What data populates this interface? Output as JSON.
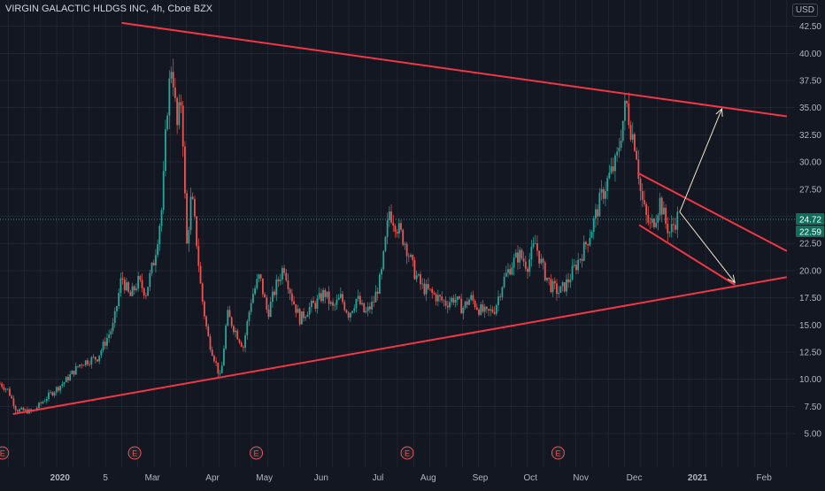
{
  "header": {
    "symbol_title": "VIRGIN GALACTIC HLDGS INC, 4h, Cboe BZX",
    "currency": "USD"
  },
  "colors": {
    "background": "#131722",
    "grid": "#2a2e39",
    "up": "#26a69a",
    "down": "#ef5350",
    "trendline": "#f23645",
    "projection_arrow": "#f0e6c8",
    "axis_text": "#b2b5be",
    "price_line": "#26a69a"
  },
  "chart_data": {
    "type": "candlestick",
    "timeframe": "4h",
    "ylim": [
      4.0,
      45.0
    ],
    "y_ticks": [
      "42.50",
      "40.00",
      "37.50",
      "35.00",
      "32.50",
      "30.00",
      "27.50",
      "25.00",
      "22.50",
      "20.00",
      "17.50",
      "15.00",
      "12.50",
      "10.00",
      "7.50",
      "5.00"
    ],
    "x_ticks": [
      {
        "label": "2020",
        "bold": true
      },
      {
        "label": "5",
        "bold": false
      },
      {
        "label": "Mar",
        "bold": false
      },
      {
        "label": "Apr",
        "bold": false
      },
      {
        "label": "May",
        "bold": false
      },
      {
        "label": "Jun",
        "bold": false
      },
      {
        "label": "Jul",
        "bold": false
      },
      {
        "label": "Aug",
        "bold": false
      },
      {
        "label": "Sep",
        "bold": false
      },
      {
        "label": "Oct",
        "bold": false
      },
      {
        "label": "Nov",
        "bold": false
      },
      {
        "label": "Dec",
        "bold": false
      },
      {
        "label": "2021",
        "bold": true
      },
      {
        "label": "Feb",
        "bold": false
      }
    ],
    "price_path": [
      [
        0.0,
        9.6
      ],
      [
        0.5,
        9.0
      ],
      [
        1.0,
        7.2
      ],
      [
        2.0,
        7.0
      ],
      [
        3.0,
        8.5
      ],
      [
        4.0,
        9.8
      ],
      [
        5.0,
        11.5
      ],
      [
        6.0,
        12.0
      ],
      [
        7.0,
        15.0
      ],
      [
        7.5,
        19.5
      ],
      [
        8.0,
        17.5
      ],
      [
        8.5,
        19.0
      ],
      [
        9.0,
        18.0
      ],
      [
        9.5,
        21.0
      ],
      [
        10.0,
        26.0
      ],
      [
        10.3,
        35.0
      ],
      [
        10.6,
        39.5
      ],
      [
        10.9,
        33.0
      ],
      [
        11.2,
        36.0
      ],
      [
        11.5,
        22.0
      ],
      [
        11.8,
        27.0
      ],
      [
        12.1,
        23.0
      ],
      [
        12.4,
        18.0
      ],
      [
        12.8,
        14.0
      ],
      [
        13.2,
        12.0
      ],
      [
        13.6,
        10.0
      ],
      [
        14.0,
        16.0
      ],
      [
        14.5,
        14.5
      ],
      [
        15.0,
        13.0
      ],
      [
        15.5,
        17.5
      ],
      [
        16.0,
        19.5
      ],
      [
        16.5,
        16.0
      ],
      [
        17.0,
        18.5
      ],
      [
        17.5,
        20.5
      ],
      [
        18.0,
        17.5
      ],
      [
        18.5,
        15.5
      ],
      [
        19.0,
        16.5
      ],
      [
        19.5,
        17.0
      ],
      [
        20.0,
        18.0
      ],
      [
        20.5,
        16.5
      ],
      [
        21.0,
        17.5
      ],
      [
        21.5,
        16.0
      ],
      [
        22.0,
        17.5
      ],
      [
        22.5,
        16.0
      ],
      [
        23.0,
        17.0
      ],
      [
        23.5,
        19.5
      ],
      [
        24.0,
        25.5
      ],
      [
        24.5,
        24.0
      ],
      [
        25.0,
        22.5
      ],
      [
        25.5,
        20.0
      ],
      [
        26.0,
        18.5
      ],
      [
        26.5,
        18.0
      ],
      [
        27.0,
        17.5
      ],
      [
        27.5,
        17.0
      ],
      [
        28.0,
        17.5
      ],
      [
        28.5,
        16.5
      ],
      [
        29.0,
        17.5
      ],
      [
        29.5,
        16.5
      ],
      [
        30.0,
        16.0
      ],
      [
        30.5,
        16.5
      ],
      [
        31.0,
        19.0
      ],
      [
        31.5,
        20.5
      ],
      [
        32.0,
        21.5
      ],
      [
        32.5,
        20.5
      ],
      [
        33.0,
        22.5
      ],
      [
        33.5,
        20.0
      ],
      [
        34.0,
        18.5
      ],
      [
        34.5,
        18.0
      ],
      [
        35.0,
        19.0
      ],
      [
        35.5,
        20.5
      ],
      [
        36.0,
        22.0
      ],
      [
        36.5,
        24.0
      ],
      [
        37.0,
        26.5
      ],
      [
        37.5,
        28.5
      ],
      [
        38.0,
        30.0
      ],
      [
        38.3,
        33.0
      ],
      [
        38.6,
        35.5
      ],
      [
        38.9,
        33.0
      ],
      [
        39.2,
        31.5
      ],
      [
        39.5,
        27.0
      ],
      [
        39.8,
        25.0
      ],
      [
        40.1,
        24.0
      ],
      [
        40.4,
        25.0
      ],
      [
        40.7,
        26.5
      ],
      [
        41.0,
        24.5
      ],
      [
        41.3,
        23.5
      ],
      [
        41.6,
        24.5
      ],
      [
        41.8,
        25.0
      ]
    ],
    "last_price_labels": [
      "24.72",
      "22.59"
    ],
    "last_price": 24.72,
    "trendlines": [
      {
        "id": "upper-resistance",
        "x1": 7.5,
        "y1": 42.8,
        "x2": 48.5,
        "y2": 34.2
      },
      {
        "id": "lower-support",
        "x1": 0.8,
        "y1": 6.8,
        "x2": 48.5,
        "y2": 19.4
      },
      {
        "id": "channel-top",
        "x1": 39.3,
        "y1": 29.0,
        "x2": 48.5,
        "y2": 21.8
      },
      {
        "id": "channel-bottom",
        "x1": 39.4,
        "y1": 24.2,
        "x2": 45.3,
        "y2": 18.7
      }
    ],
    "projection_arrows": [
      {
        "id": "bullish-target",
        "x1": 41.9,
        "y1": 25.4,
        "x2": 44.5,
        "y2": 34.9
      },
      {
        "id": "bearish-target",
        "x1": 41.9,
        "y1": 25.4,
        "x2": 45.3,
        "y2": 18.9
      }
    ],
    "event_markers": [
      {
        "label": "E",
        "x": 0.15
      },
      {
        "label": "E",
        "x": 8.3
      },
      {
        "label": "E",
        "x": 15.8
      },
      {
        "label": "E",
        "x": 25.1
      },
      {
        "label": "E",
        "x": 34.4
      }
    ]
  }
}
